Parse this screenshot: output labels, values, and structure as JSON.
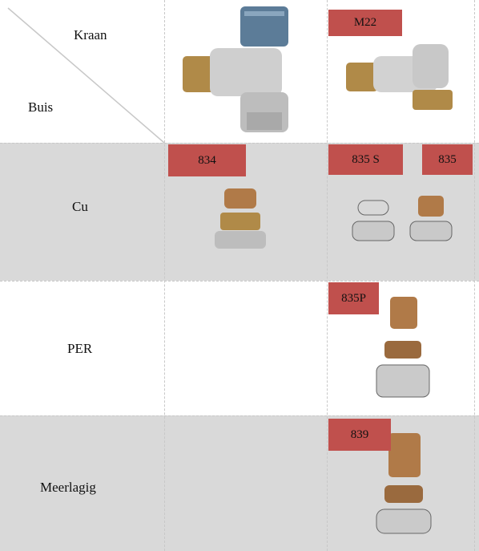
{
  "header": {
    "valve_label": "Kraan",
    "pipe_label": "Buis",
    "valve_code": "M22"
  },
  "rows": [
    {
      "label": "Cu",
      "codes": [
        "834",
        "835 S",
        "835"
      ]
    },
    {
      "label": "PER",
      "codes": [
        "835P"
      ]
    },
    {
      "label": "Meerlagig",
      "codes": [
        "839"
      ]
    }
  ]
}
